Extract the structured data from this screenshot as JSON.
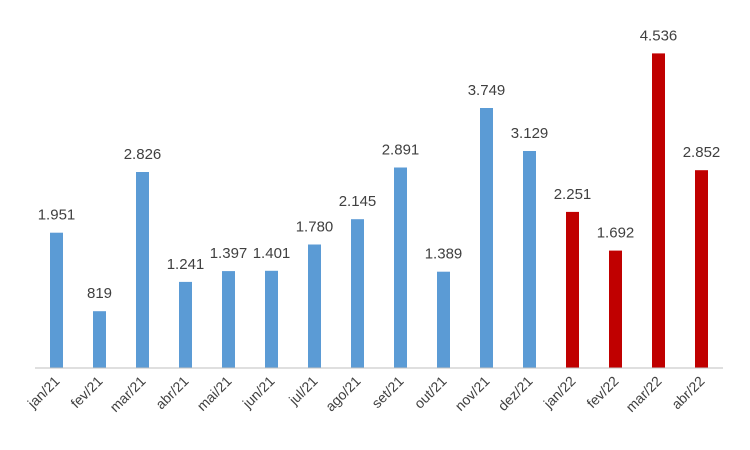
{
  "chart_data": {
    "type": "bar",
    "title": "",
    "xlabel": "",
    "ylabel": "",
    "ylim": [
      0,
      4700
    ],
    "grid": false,
    "legend": "none",
    "categories": [
      "jan/21",
      "fev/21",
      "mar/21",
      "abr/21",
      "mai/21",
      "jun/21",
      "jul/21",
      "ago/21",
      "set/21",
      "out/21",
      "nov/21",
      "dez/21",
      "jan/22",
      "fev/22",
      "mar/22",
      "abr/22"
    ],
    "values": [
      1951,
      819,
      2826,
      1241,
      1397,
      1401,
      1780,
      2145,
      2891,
      1389,
      3749,
      3129,
      2251,
      1692,
      4536,
      2852
    ],
    "value_labels": [
      "1.951",
      "819",
      "2.826",
      "1.241",
      "1.397",
      "1.401",
      "1.780",
      "2.145",
      "2.891",
      "1.389",
      "3.749",
      "3.129",
      "2.251",
      "1.692",
      "4.536",
      "2.852"
    ],
    "bar_colors": [
      "#5b9bd5",
      "#5b9bd5",
      "#5b9bd5",
      "#5b9bd5",
      "#5b9bd5",
      "#5b9bd5",
      "#5b9bd5",
      "#5b9bd5",
      "#5b9bd5",
      "#5b9bd5",
      "#5b9bd5",
      "#5b9bd5",
      "#c00000",
      "#c00000",
      "#c00000",
      "#c00000"
    ],
    "axis_color": "#bfbfbf"
  }
}
